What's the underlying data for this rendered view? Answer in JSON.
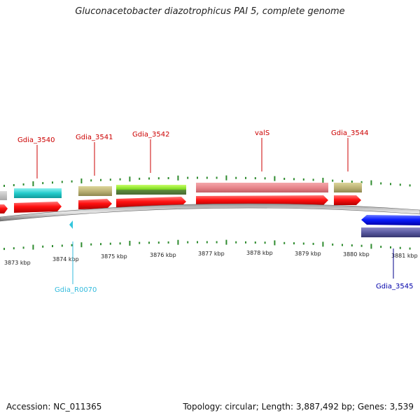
{
  "title": "Gluconacetobacter diazotrophicus PAI 5, complete genome",
  "footer": {
    "accession": "Accession: NC_011365",
    "summary": "Topology: circular; Length: 3,887,492 bp; Genes: 3,539"
  },
  "axis_ticks": [
    "3873 kbp",
    "3874 kbp",
    "3875 kbp",
    "3876 kbp",
    "3877 kbp",
    "3878 kbp",
    "3879 kbp",
    "3880 kbp",
    "3881 kbp"
  ],
  "genes": [
    {
      "label": "Gdia_3540",
      "color": "#cc0000"
    },
    {
      "label": "Gdia_3541",
      "color": "#cc0000"
    },
    {
      "label": "Gdia_3542",
      "color": "#cc0000"
    },
    {
      "label": "valS",
      "color": "#cc0000"
    },
    {
      "label": "Gdia_3544",
      "color": "#cc0000"
    },
    {
      "label": "Gdia_R0070",
      "color": "#33bbdd"
    },
    {
      "label": "Gdia_3545",
      "color": "#0000aa"
    }
  ],
  "colors": {
    "forward_gene": "#ee1111",
    "reverse_gene": "#0011ee",
    "tick": "#2e8b2e",
    "backbone": "#808080",
    "rna": "#33cccc"
  }
}
